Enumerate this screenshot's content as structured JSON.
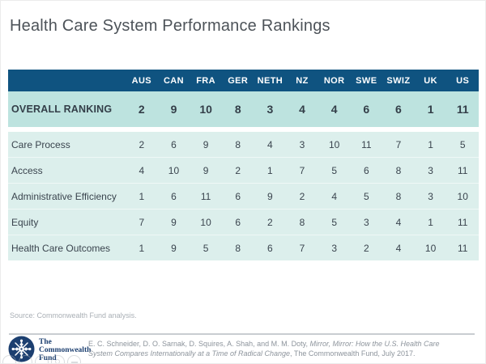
{
  "page": {
    "title": "Health Care System Performance Rankings"
  },
  "chart_data": {
    "type": "table",
    "title": "Health Care System Performance Rankings",
    "columns": [
      "AUS",
      "CAN",
      "FRA",
      "GER",
      "NETH",
      "NZ",
      "NOR",
      "SWE",
      "SWIZ",
      "UK",
      "US"
    ],
    "overall_row": {
      "label": "OVERALL RANKING",
      "values": [
        2,
        9,
        10,
        8,
        3,
        4,
        4,
        6,
        6,
        1,
        11
      ]
    },
    "body_rows": [
      {
        "label": "Care Process",
        "values": [
          2,
          6,
          9,
          8,
          4,
          3,
          10,
          11,
          7,
          1,
          5
        ]
      },
      {
        "label": "Access",
        "values": [
          4,
          10,
          9,
          2,
          1,
          7,
          5,
          6,
          8,
          3,
          11
        ]
      },
      {
        "label": "Administrative Efficiency",
        "values": [
          1,
          6,
          11,
          6,
          9,
          2,
          4,
          5,
          8,
          3,
          10
        ]
      },
      {
        "label": "Equity",
        "values": [
          7,
          9,
          10,
          6,
          2,
          8,
          5,
          3,
          4,
          1,
          11
        ]
      },
      {
        "label": "Health Care Outcomes",
        "values": [
          1,
          9,
          5,
          8,
          6,
          7,
          3,
          2,
          4,
          10,
          11
        ]
      }
    ],
    "value_meaning": "rank (1 = best, 11 = worst)",
    "layout": {
      "legend": "none",
      "grid": "off"
    }
  },
  "source": "Source: Commonwealth Fund analysis.",
  "footer": {
    "logo_org": "The\nCommonwealth\nFund",
    "logo_icon": "commonwealth-fund-snowflake-icon",
    "citation_prefix": "E. C. Schneider, D. O. Sarnak, D. Squires, A. Shah, and M. M. Doty, ",
    "citation_title": "Mirror, Mirror: How the U.S. Health Care System Compares Internationally at a Time of Radical Change",
    "citation_suffix": ", The Commonwealth Fund, July 2017."
  },
  "colors": {
    "header_bg": "#0f5380",
    "overall_row_bg": "#bde3df",
    "body_row_bg": "#dcefec",
    "text_dark": "#3a444e",
    "logo_navy": "#1c3f70",
    "divider_gray": "#c9cdd1"
  }
}
